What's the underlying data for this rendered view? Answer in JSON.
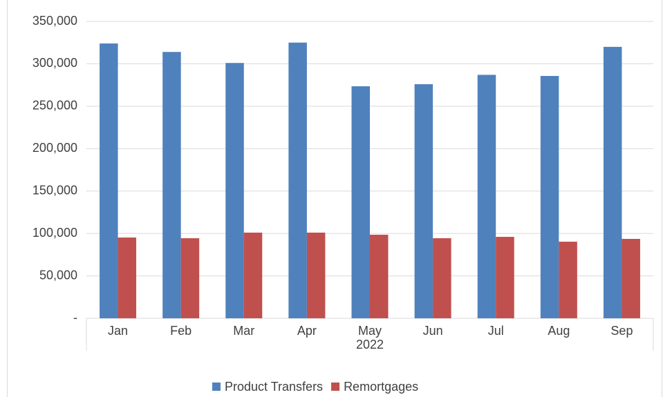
{
  "chart_data": {
    "type": "bar",
    "categories": [
      "Jan",
      "Feb",
      "Mar",
      "Apr",
      "May",
      "Jun",
      "Jul",
      "Aug",
      "Sep"
    ],
    "category_group": "2022",
    "series": [
      {
        "name": "Product Transfers",
        "color": "#4f81bd",
        "values": [
          324000,
          314000,
          301000,
          325000,
          273500,
          276000,
          287000,
          285700,
          320000
        ]
      },
      {
        "name": "Remortgages",
        "color": "#c0504d",
        "values": [
          95200,
          94400,
          101000,
          101000,
          98500,
          94400,
          96000,
          90300,
          93600
        ]
      }
    ],
    "ylim": [
      0,
      350000
    ],
    "yticks": [
      {
        "value": 0,
        "label": "-"
      },
      {
        "value": 50000,
        "label": "50,000"
      },
      {
        "value": 100000,
        "label": "100,000"
      },
      {
        "value": 150000,
        "label": "150,000"
      },
      {
        "value": 200000,
        "label": "200,000"
      },
      {
        "value": 250000,
        "label": "250,000"
      },
      {
        "value": 300000,
        "label": "300,000"
      },
      {
        "value": 350000,
        "label": "350,000"
      }
    ],
    "grid": true,
    "legend": "bottom"
  }
}
